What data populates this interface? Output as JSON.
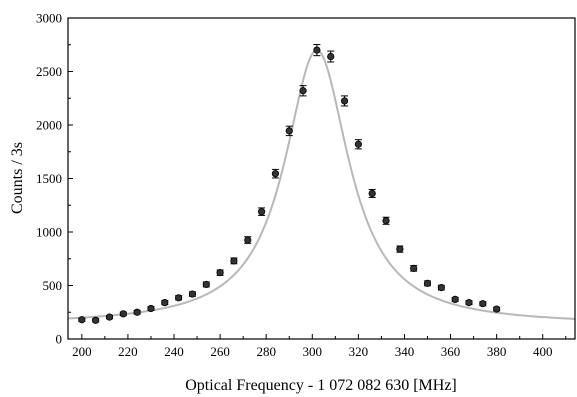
{
  "chart_data": {
    "type": "scatter",
    "title": "",
    "xlabel": "Optical Frequency - 1 072 082 630 [MHz]",
    "ylabel": "Counts / 3s",
    "xlim": [
      194,
      414
    ],
    "ylim": [
      0,
      3000
    ],
    "xticks": [
      200,
      220,
      240,
      260,
      280,
      300,
      320,
      340,
      360,
      380,
      400
    ],
    "yticks": [
      0,
      500,
      1000,
      1500,
      2000,
      2500,
      3000
    ],
    "grid": false,
    "legend": "none",
    "marker_color": "#333333",
    "fit_color": "#b8b8b8",
    "series": [
      {
        "kind": "points_with_errorbars",
        "x": [
          200,
          206,
          212,
          218,
          224,
          230,
          236,
          242,
          248,
          254,
          260,
          266,
          272,
          278,
          284,
          290,
          296,
          302,
          308,
          314,
          320,
          326,
          332,
          338,
          344,
          350,
          356,
          362,
          368,
          374,
          380
        ],
        "y": [
          180,
          175,
          205,
          235,
          250,
          285,
          340,
          385,
          420,
          510,
          620,
          730,
          925,
          1190,
          1545,
          1945,
          2320,
          2700,
          2640,
          2225,
          1820,
          1360,
          1105,
          840,
          660,
          520,
          480,
          370,
          340,
          330,
          280
        ],
        "yerr": [
          15,
          15,
          15,
          17,
          17,
          18,
          19,
          20,
          21,
          23,
          25,
          27,
          31,
          35,
          40,
          44,
          48,
          52,
          51,
          47,
          43,
          37,
          33,
          29,
          26,
          23,
          22,
          19,
          18,
          18,
          17
        ]
      },
      {
        "kind": "fit_curve",
        "model": "lorentzian",
        "center": 302,
        "fwhm": 34,
        "amplitude": 2570,
        "offset": 130,
        "x_range": [
          194,
          414
        ]
      }
    ]
  }
}
